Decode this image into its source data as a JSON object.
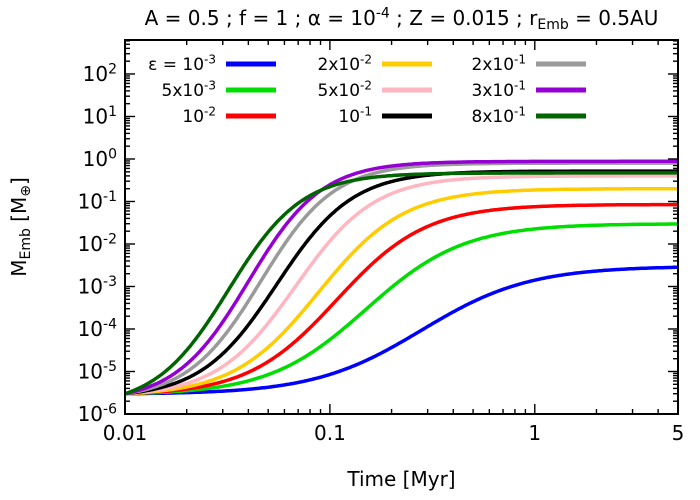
{
  "figure": {
    "background": "#ffffff"
  },
  "chart_data": {
    "type": "line",
    "title_parts": [
      {
        "t": "A = 0.5 ; f = 1 ; α = 10"
      },
      {
        "t": "-4",
        "s": "sup"
      },
      {
        "t": " ; Z = 0.015 ; r"
      },
      {
        "t": "Emb",
        "s": "sub"
      },
      {
        "t": " = 0.5AU"
      }
    ],
    "xlabel": "Time [Myr]",
    "ylabel_parts": [
      {
        "t": "M"
      },
      {
        "t": "Emb",
        "s": "sub"
      },
      {
        "t": " [M"
      },
      {
        "t": "⊕",
        "s": "sub"
      },
      {
        "t": "]"
      }
    ],
    "x_scale": "log",
    "y_scale": "log",
    "x_range": [
      0.01,
      5
    ],
    "y_range": [
      1e-06,
      630
    ],
    "x_ticks": [
      {
        "value": 0.01,
        "label": "0.01"
      },
      {
        "value": 0.1,
        "label": "0.1"
      },
      {
        "value": 1,
        "label": "1"
      },
      {
        "value": 5,
        "label": "5"
      }
    ],
    "y_tick_exponents": [
      -6,
      -5,
      -4,
      -3,
      -2,
      -1,
      0,
      1,
      2
    ],
    "grid": false,
    "legend": {
      "position": "top-left-inside",
      "columns": 3,
      "column_major": true
    },
    "initial_mass": 3e-06,
    "series": [
      {
        "name": "eps-1e-3",
        "epsilon": 0.001,
        "label_parts": [
          {
            "t": "ε = 10"
          },
          {
            "t": "-3",
            "s": "sup"
          }
        ],
        "color": "#0000ff",
        "final_mass": 0.003,
        "t_half": 0.28,
        "steepness": 3.8
      },
      {
        "name": "eps-5e-3",
        "epsilon": 0.005,
        "label_parts": [
          {
            "t": "5x10"
          },
          {
            "t": "-3",
            "s": "sup"
          }
        ],
        "color": "#00dd00",
        "final_mass": 0.03,
        "t_half": 0.15,
        "steepness": 4.2
      },
      {
        "name": "eps-1e-2",
        "epsilon": 0.01,
        "label_parts": [
          {
            "t": "10"
          },
          {
            "t": "-2",
            "s": "sup"
          }
        ],
        "color": "#ff0000",
        "final_mass": 0.085,
        "t_half": 0.108,
        "steepness": 4.6
      },
      {
        "name": "eps-2e-2",
        "epsilon": 0.02,
        "label_parts": [
          {
            "t": "2x10"
          },
          {
            "t": "-2",
            "s": "sup"
          }
        ],
        "color": "#ffcc00",
        "final_mass": 0.2,
        "t_half": 0.088,
        "steepness": 4.8
      },
      {
        "name": "eps-5e-2",
        "epsilon": 0.05,
        "label_parts": [
          {
            "t": "5x10"
          },
          {
            "t": "-2",
            "s": "sup"
          }
        ],
        "color": "#ffb6c1",
        "final_mass": 0.4,
        "t_half": 0.068,
        "steepness": 5.2
      },
      {
        "name": "eps-1e-1",
        "epsilon": 0.1,
        "label_parts": [
          {
            "t": "10"
          },
          {
            "t": "-1",
            "s": "sup"
          }
        ],
        "color": "#000000",
        "final_mass": 0.52,
        "t_half": 0.055,
        "steepness": 5.4
      },
      {
        "name": "eps-2e-1",
        "epsilon": 0.2,
        "label_parts": [
          {
            "t": "2x10"
          },
          {
            "t": "-1",
            "s": "sup"
          }
        ],
        "color": "#9a9a9a",
        "final_mass": 0.8,
        "t_half": 0.046,
        "steepness": 5.6
      },
      {
        "name": "eps-3e-1",
        "epsilon": 0.3,
        "label_parts": [
          {
            "t": "3x10"
          },
          {
            "t": "-1",
            "s": "sup"
          }
        ],
        "color": "#9400d3",
        "final_mass": 0.88,
        "t_half": 0.04,
        "steepness": 5.6
      },
      {
        "name": "eps-8e-1",
        "epsilon": 0.8,
        "label_parts": [
          {
            "t": "8x10"
          },
          {
            "t": "-1",
            "s": "sup"
          }
        ],
        "color": "#006400",
        "final_mass": 0.47,
        "t_half": 0.032,
        "steepness": 5.6
      }
    ]
  }
}
